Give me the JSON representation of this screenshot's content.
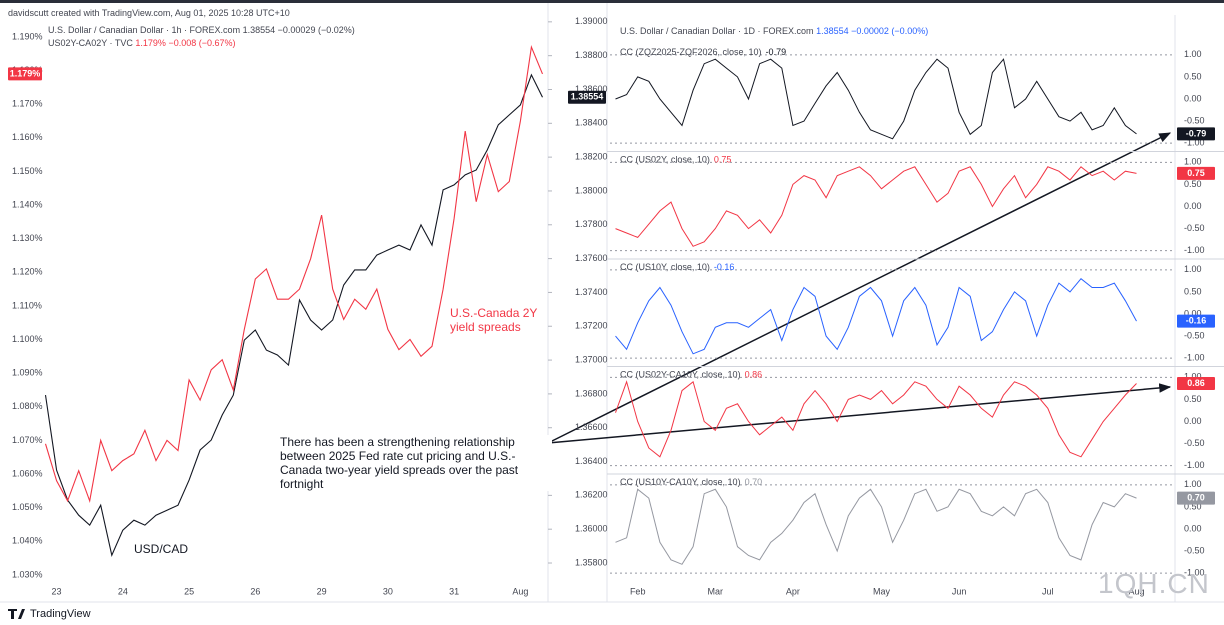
{
  "header": {
    "credit": "davidscutt created with TradingView.com, Aug 01, 2025 10:28 UTC+10",
    "brand": "TradingView",
    "watermark": "1QH.CN"
  },
  "chart_data": [
    {
      "type": "line",
      "categories": [
        null,
        "23",
        null,
        null,
        null,
        null,
        null,
        "24",
        null,
        null,
        null,
        null,
        null,
        "25",
        null,
        null,
        null,
        null,
        null,
        "26",
        null,
        null,
        null,
        null,
        null,
        "29",
        null,
        null,
        null,
        null,
        null,
        "30",
        null,
        null,
        null,
        null,
        null,
        "31",
        null,
        null,
        null,
        null,
        null,
        "Aug",
        null,
        null
      ],
      "series": [
        {
          "name": "U.S. Dollar / Canadian Dollar · 1h · FOREX.com",
          "last": "1.38554",
          "change": "−0.00029 (−0.02%)",
          "color": "#131722",
          "axis": "y2",
          "values": [
            1.36793,
            1.36349,
            1.36172,
            1.36083,
            1.36024,
            1.36142,
            1.35846,
            1.35994,
            1.36053,
            1.36024,
            1.36083,
            1.36112,
            1.36142,
            1.3629,
            1.36468,
            1.36527,
            1.36675,
            1.36793,
            1.37118,
            1.37178,
            1.37059,
            1.3703,
            1.3697,
            1.37355,
            1.37237,
            1.37178,
            1.37237,
            1.37444,
            1.37533,
            1.37533,
            1.37621,
            1.37651,
            1.3768,
            1.37651,
            1.37799,
            1.3768,
            1.38006,
            1.38036,
            1.38095,
            1.38124,
            1.38243,
            1.38391,
            1.3845,
            1.38509,
            1.38686,
            1.38554
          ]
        },
        {
          "name": "US02Y-CA02Y · TVC",
          "last": "1.179%",
          "change": "−0.008 (−0.67%)",
          "color": "#f23645",
          "values": [
            1.069,
            1.058,
            1.052,
            1.061,
            1.052,
            1.07,
            1.061,
            1.064,
            1.066,
            1.073,
            1.064,
            1.07,
            1.067,
            1.088,
            1.082,
            1.091,
            1.094,
            1.085,
            1.103,
            1.118,
            1.121,
            1.112,
            1.112,
            1.115,
            1.124,
            1.137,
            1.115,
            1.106,
            1.112,
            1.109,
            1.115,
            1.103,
            1.097,
            1.1,
            1.095,
            1.098,
            1.115,
            1.136,
            1.162,
            1.141,
            1.155,
            1.144,
            1.147,
            1.165,
            1.187,
            1.179
          ]
        }
      ],
      "ylim": [
        1.027,
        1.198
      ],
      "yticks": [
        {
          "value": 1.03,
          "label": "1.030%"
        },
        {
          "value": 1.04,
          "label": "1.040%"
        },
        {
          "value": 1.05,
          "label": "1.050%"
        },
        {
          "value": 1.06,
          "label": "1.060%"
        },
        {
          "value": 1.07,
          "label": "1.070%"
        },
        {
          "value": 1.08,
          "label": "1.080%"
        },
        {
          "value": 1.09,
          "label": "1.090%"
        },
        {
          "value": 1.1,
          "label": "1.100%"
        },
        {
          "value": 1.11,
          "label": "1.110%"
        },
        {
          "value": 1.12,
          "label": "1.120%"
        },
        {
          "value": 1.13,
          "label": "1.130%"
        },
        {
          "value": 1.14,
          "label": "1.140%"
        },
        {
          "value": 1.15,
          "label": "1.150%"
        },
        {
          "value": 1.16,
          "label": "1.160%"
        },
        {
          "value": 1.17,
          "label": "1.170%"
        },
        {
          "value": 1.18,
          "label": "1.180%"
        },
        {
          "value": 1.19,
          "label": "1.190%"
        }
      ],
      "y2lim": [
        1.3567,
        1.3907
      ],
      "y2ticks": [
        {
          "value": 1.358,
          "label": "1.35800"
        },
        {
          "value": 1.36,
          "label": "1.36000"
        },
        {
          "value": 1.362,
          "label": "1.36200"
        },
        {
          "value": 1.364,
          "label": "1.36400"
        },
        {
          "value": 1.366,
          "label": "1.36600"
        },
        {
          "value": 1.368,
          "label": "1.36800"
        },
        {
          "value": 1.37,
          "label": "1.37000"
        },
        {
          "value": 1.372,
          "label": "1.37200"
        },
        {
          "value": 1.374,
          "label": "1.37400"
        },
        {
          "value": 1.376,
          "label": "1.37600"
        },
        {
          "value": 1.378,
          "label": "1.37800"
        },
        {
          "value": 1.38,
          "label": "1.38000"
        },
        {
          "value": 1.382,
          "label": "1.38200"
        },
        {
          "value": 1.384,
          "label": "1.38400"
        },
        {
          "value": 1.386,
          "label": "1.38600"
        },
        {
          "value": 1.388,
          "label": "1.38800"
        },
        {
          "value": 1.39,
          "label": "1.39000"
        }
      ],
      "grid": false,
      "annotations": [
        "U.S.-Canada 2Y yield spreads",
        "USD/CAD",
        "There has been a strengthening relationship between 2025 Fed rate cut pricing and U.S.-Canada two-year yield spreads over the past fortnight"
      ]
    },
    {
      "type": "line",
      "title": "U.S. Dollar / Canadian Dollar · 1D · FOREX.com",
      "last": "1.38554",
      "change": "−0.00002 (−0.00%)",
      "categories": [
        null,
        null,
        "Feb",
        null,
        null,
        null,
        null,
        null,
        null,
        "Mar",
        null,
        null,
        null,
        null,
        null,
        null,
        "Apr",
        null,
        null,
        null,
        null,
        null,
        null,
        null,
        "May",
        null,
        null,
        null,
        null,
        null,
        null,
        "Jun",
        null,
        null,
        null,
        null,
        null,
        null,
        null,
        "Jul",
        null,
        null,
        null,
        null,
        null,
        null,
        null,
        "Aug"
      ],
      "ylim": [
        -1.2,
        1.2
      ],
      "yticks": [
        {
          "value": 1,
          "label": "1.00"
        },
        {
          "value": 0.5,
          "label": "0.50"
        },
        {
          "value": 0,
          "label": "0.00"
        },
        {
          "value": -0.5,
          "label": "-0.50"
        },
        {
          "value": -1,
          "label": "-1.00"
        }
      ],
      "panels": [
        {
          "title": "CC (ZQZ2025-ZQF2026, close, 10)",
          "current_label": "-0.79",
          "color": "#131722",
          "values": [
            0.0,
            0.1,
            0.5,
            0.4,
            0.0,
            -0.3,
            -0.6,
            0.2,
            0.8,
            0.9,
            0.7,
            0.5,
            0.0,
            0.8,
            0.9,
            0.7,
            -0.6,
            -0.5,
            -0.1,
            0.3,
            0.6,
            0.2,
            -0.3,
            -0.7,
            -0.8,
            -0.9,
            -0.5,
            0.2,
            0.6,
            0.9,
            0.7,
            -0.3,
            -0.8,
            -0.6,
            0.6,
            0.9,
            -0.2,
            0.0,
            0.4,
            0.0,
            -0.4,
            -0.5,
            -0.3,
            -0.7,
            -0.6,
            -0.2,
            -0.6,
            -0.79
          ]
        },
        {
          "title": "CC (US02Y, close, 10)",
          "current_label": "0.75",
          "color": "#f23645",
          "values": [
            -0.5,
            -0.6,
            -0.7,
            -0.4,
            -0.1,
            0.1,
            -0.5,
            -0.9,
            -0.8,
            -0.5,
            -0.1,
            -0.2,
            -0.5,
            -0.3,
            -0.6,
            -0.2,
            0.5,
            0.7,
            0.6,
            0.2,
            0.7,
            0.8,
            0.9,
            0.7,
            0.4,
            0.6,
            0.8,
            0.9,
            0.5,
            0.1,
            0.3,
            0.8,
            0.9,
            0.5,
            0.0,
            0.4,
            0.7,
            0.2,
            0.5,
            0.9,
            0.8,
            0.6,
            0.9,
            0.7,
            0.8,
            0.6,
            0.8,
            0.75
          ]
        },
        {
          "title": "CC (US10Y, close, 10)",
          "current_label": "-0.16",
          "color": "#2962ff",
          "values": [
            -0.5,
            -0.8,
            -0.2,
            0.3,
            0.6,
            0.2,
            -0.4,
            -0.9,
            -0.8,
            -0.3,
            -0.2,
            -0.2,
            -0.3,
            -0.1,
            0.1,
            -0.6,
            0.1,
            0.6,
            0.4,
            -0.5,
            -0.8,
            -0.3,
            0.4,
            0.6,
            0.3,
            -0.5,
            0.3,
            0.6,
            0.2,
            -0.7,
            -0.3,
            0.6,
            0.4,
            -0.6,
            -0.4,
            0.1,
            0.5,
            0.3,
            -0.5,
            0.2,
            0.7,
            0.5,
            0.8,
            0.6,
            0.6,
            0.7,
            0.3,
            -0.16
          ]
        },
        {
          "title": "CC (US02Y-CA10Y, close, 10)",
          "current_label": "0.86",
          "color": "#f23645",
          "values": [
            0.2,
            0.9,
            0.0,
            -0.6,
            -0.8,
            -0.2,
            0.7,
            0.9,
            0.0,
            -0.2,
            0.3,
            0.4,
            0.0,
            -0.3,
            -0.1,
            0.1,
            -0.2,
            0.4,
            0.7,
            0.4,
            0.0,
            0.5,
            0.6,
            0.5,
            0.7,
            0.4,
            0.6,
            0.9,
            0.8,
            0.5,
            0.3,
            0.8,
            0.6,
            0.3,
            0.1,
            0.6,
            0.9,
            0.8,
            0.6,
            0.3,
            -0.3,
            -0.7,
            -0.8,
            -0.4,
            0.0,
            0.3,
            0.6,
            0.86
          ]
        },
        {
          "title": "CC (US10Y-CA10Y, close, 10)",
          "current_label": "0.70",
          "color": "#9598a1",
          "values": [
            -0.3,
            -0.2,
            0.9,
            0.7,
            -0.3,
            -0.7,
            -0.8,
            -0.4,
            0.8,
            0.9,
            0.5,
            -0.4,
            -0.6,
            -0.7,
            -0.3,
            -0.1,
            0.2,
            0.6,
            0.8,
            0.1,
            -0.5,
            0.3,
            0.7,
            0.9,
            0.5,
            -0.3,
            0.2,
            0.8,
            0.9,
            0.4,
            0.5,
            0.9,
            0.8,
            0.4,
            0.3,
            0.5,
            0.3,
            0.8,
            0.9,
            0.6,
            -0.2,
            -0.6,
            -0.7,
            0.1,
            0.6,
            0.5,
            0.8,
            0.7
          ]
        }
      ]
    }
  ]
}
